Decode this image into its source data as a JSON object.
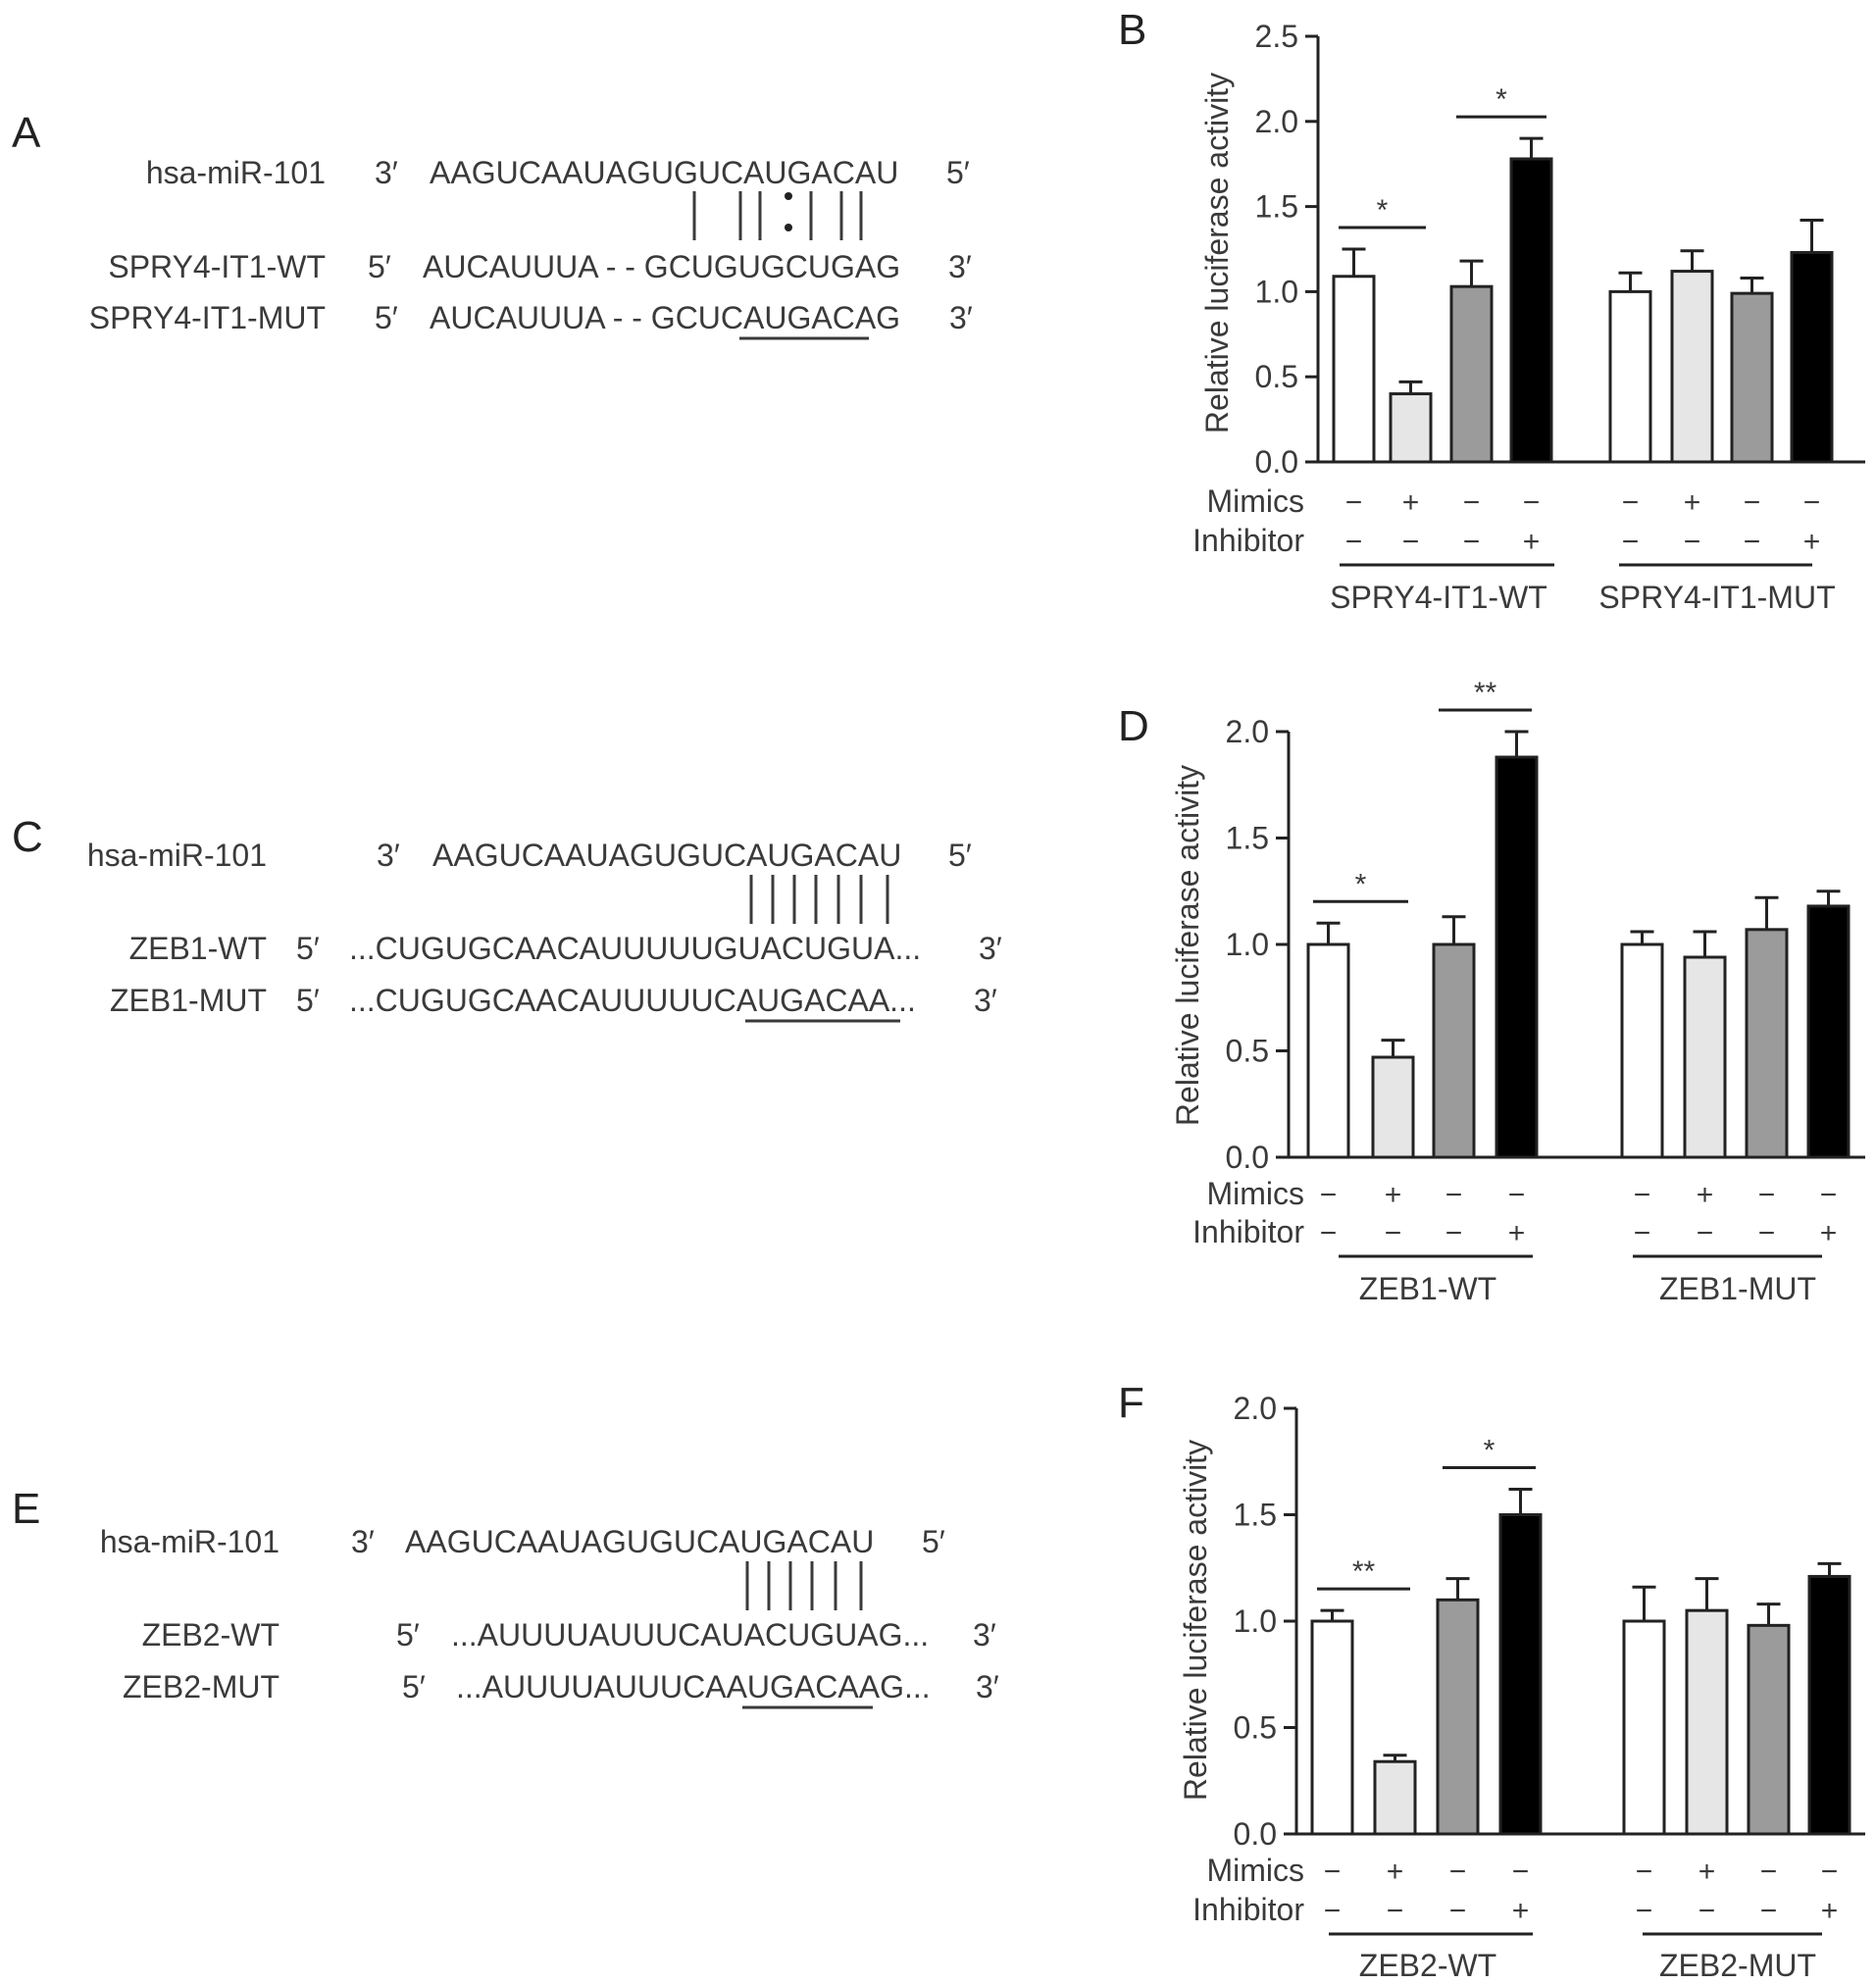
{
  "panels": {
    "A": {
      "letter": "A",
      "rows": [
        {
          "name": "hsa-miR-101",
          "end_left": "3′",
          "seq": "AAGUCAAUAGUGUCAUGACAU",
          "end_right": "5′"
        },
        {
          "name": "SPRY4-IT1-WT",
          "end_left": "5′",
          "seq": "AUCAUUUA - - GCUGUGCUGAG",
          "end_right": "3′"
        },
        {
          "name": "SPRY4-IT1-MUT",
          "end_left": "5′",
          "seq": "AUCAUUUA - - GCUCAUGACAG",
          "end_right": "3′"
        }
      ]
    },
    "C": {
      "letter": "C",
      "rows": [
        {
          "name": "hsa-miR-101",
          "end_left": "3′",
          "seq": "AAGUCAAUAGUGUCAUGACAU",
          "end_right": "5′"
        },
        {
          "name": "ZEB1-WT",
          "end_left": "5′",
          "seq": "...CUGUGCAACAUUUUUGUACUGUA...",
          "end_right": "3′"
        },
        {
          "name": "ZEB1-MUT",
          "end_left": "5′",
          "seq": "...CUGUGCAACAUUUUUCAUGACAA...",
          "end_right": "3′"
        }
      ]
    },
    "E": {
      "letter": "E",
      "rows": [
        {
          "name": "hsa-miR-101",
          "end_left": "3′",
          "seq": "AAGUCAAUAGUGUCAUGACAU",
          "end_right": "5′"
        },
        {
          "name": "ZEB2-WT",
          "end_left": "5′",
          "seq": "...AUUUUAUUUCAUACUGUAG...",
          "end_right": "3′"
        },
        {
          "name": "ZEB2-MUT",
          "end_left": "5′",
          "seq": "...AUUUUAUUUCAAUGACAAG...",
          "end_right": "3′"
        }
      ]
    }
  },
  "chart_data": [
    {
      "panel": "B",
      "type": "bar",
      "ylabel": "Relative luciferase activity",
      "ylim": [
        0,
        2.5
      ],
      "yticks": [
        "0.0",
        "0.5",
        "1.0",
        "1.5",
        "2.0",
        "2.5"
      ],
      "row_labels": [
        "Mimics",
        "Inhibitor"
      ],
      "groups": [
        "SPRY4-IT1-WT",
        "SPRY4-IT1-MUT"
      ],
      "bar_colors": [
        "#ffffff",
        "#e6e6e6",
        "#9b9b9b",
        "#000000"
      ],
      "bars": [
        {
          "group": 0,
          "value": 1.09,
          "error": 0.16,
          "mimics": "−",
          "inhibitor": "−"
        },
        {
          "group": 0,
          "value": 0.4,
          "error": 0.07,
          "mimics": "+",
          "inhibitor": "−"
        },
        {
          "group": 0,
          "value": 1.03,
          "error": 0.15,
          "mimics": "−",
          "inhibitor": "−"
        },
        {
          "group": 0,
          "value": 1.78,
          "error": 0.12,
          "mimics": "−",
          "inhibitor": "+"
        },
        {
          "group": 1,
          "value": 1.0,
          "error": 0.11,
          "mimics": "−",
          "inhibitor": "−"
        },
        {
          "group": 1,
          "value": 1.12,
          "error": 0.12,
          "mimics": "+",
          "inhibitor": "−"
        },
        {
          "group": 1,
          "value": 0.99,
          "error": 0.09,
          "mimics": "−",
          "inhibitor": "−"
        },
        {
          "group": 1,
          "value": 1.23,
          "error": 0.19,
          "mimics": "−",
          "inhibitor": "+"
        }
      ],
      "significance": [
        {
          "from": 0,
          "to": 1,
          "label": "*"
        },
        {
          "from": 2,
          "to": 3,
          "label": "*"
        }
      ]
    },
    {
      "panel": "D",
      "type": "bar",
      "ylabel": "Relative luciferase activity",
      "ylim": [
        0,
        2.0
      ],
      "yticks": [
        "0.0",
        "0.5",
        "1.0",
        "1.5",
        "2.0"
      ],
      "row_labels": [
        "Mimics",
        "Inhibitor"
      ],
      "groups": [
        "ZEB1-WT",
        "ZEB1-MUT"
      ],
      "bar_colors": [
        "#ffffff",
        "#e6e6e6",
        "#9b9b9b",
        "#000000"
      ],
      "bars": [
        {
          "group": 0,
          "value": 1.0,
          "error": 0.1,
          "mimics": "−",
          "inhibitor": "−"
        },
        {
          "group": 0,
          "value": 0.47,
          "error": 0.08,
          "mimics": "+",
          "inhibitor": "−"
        },
        {
          "group": 0,
          "value": 1.0,
          "error": 0.13,
          "mimics": "−",
          "inhibitor": "−"
        },
        {
          "group": 0,
          "value": 1.88,
          "error": 0.12,
          "mimics": "−",
          "inhibitor": "+"
        },
        {
          "group": 1,
          "value": 1.0,
          "error": 0.06,
          "mimics": "−",
          "inhibitor": "−"
        },
        {
          "group": 1,
          "value": 0.94,
          "error": 0.12,
          "mimics": "+",
          "inhibitor": "−"
        },
        {
          "group": 1,
          "value": 1.07,
          "error": 0.15,
          "mimics": "−",
          "inhibitor": "−"
        },
        {
          "group": 1,
          "value": 1.18,
          "error": 0.07,
          "mimics": "−",
          "inhibitor": "+"
        }
      ],
      "significance": [
        {
          "from": 0,
          "to": 1,
          "label": "*"
        },
        {
          "from": 2,
          "to": 3,
          "label": "**"
        }
      ]
    },
    {
      "panel": "F",
      "type": "bar",
      "ylabel": "Relative luciferase activity",
      "ylim": [
        0,
        2.0
      ],
      "yticks": [
        "0.0",
        "0.5",
        "1.0",
        "1.5",
        "2.0"
      ],
      "row_labels": [
        "Mimics",
        "Inhibitor"
      ],
      "groups": [
        "ZEB2-WT",
        "ZEB2-MUT"
      ],
      "bar_colors": [
        "#ffffff",
        "#e6e6e6",
        "#9b9b9b",
        "#000000"
      ],
      "bars": [
        {
          "group": 0,
          "value": 1.0,
          "error": 0.05,
          "mimics": "−",
          "inhibitor": "−"
        },
        {
          "group": 0,
          "value": 0.34,
          "error": 0.03,
          "mimics": "+",
          "inhibitor": "−"
        },
        {
          "group": 0,
          "value": 1.1,
          "error": 0.1,
          "mimics": "−",
          "inhibitor": "−"
        },
        {
          "group": 0,
          "value": 1.5,
          "error": 0.12,
          "mimics": "−",
          "inhibitor": "+"
        },
        {
          "group": 1,
          "value": 1.0,
          "error": 0.16,
          "mimics": "−",
          "inhibitor": "−"
        },
        {
          "group": 1,
          "value": 1.05,
          "error": 0.15,
          "mimics": "+",
          "inhibitor": "−"
        },
        {
          "group": 1,
          "value": 0.98,
          "error": 0.1,
          "mimics": "−",
          "inhibitor": "−"
        },
        {
          "group": 1,
          "value": 1.21,
          "error": 0.06,
          "mimics": "−",
          "inhibitor": "+"
        }
      ],
      "significance": [
        {
          "from": 0,
          "to": 1,
          "label": "**"
        },
        {
          "from": 2,
          "to": 3,
          "label": "*"
        }
      ]
    }
  ]
}
